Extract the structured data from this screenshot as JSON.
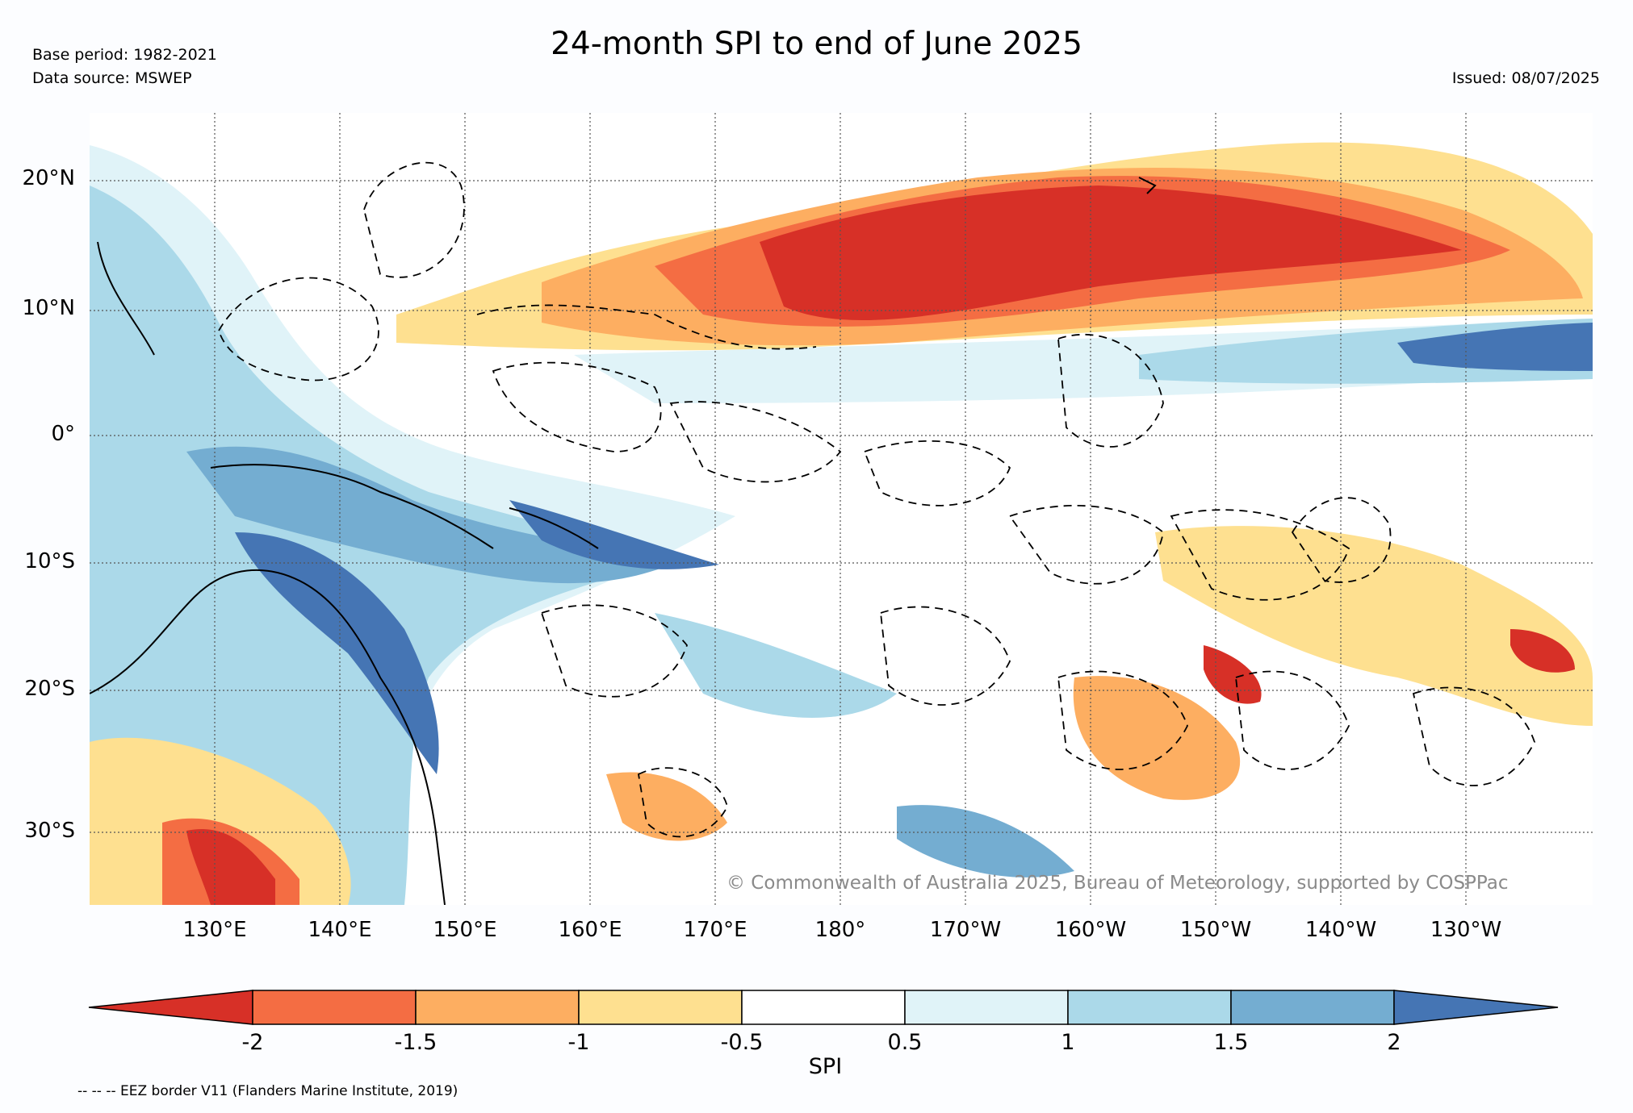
{
  "title": "24-month SPI to end of June 2025",
  "base_period": "Base period: 1982-2021",
  "data_source": "Data source: MSWEP",
  "issued": "Issued: 08/07/2025",
  "lat_labels": [
    "20°N",
    "10°N",
    "0°",
    "10°S",
    "20°S",
    "30°S"
  ],
  "lon_labels": [
    "130°E",
    "140°E",
    "150°E",
    "160°E",
    "170°E",
    "180°",
    "170°W",
    "160°W",
    "150°W",
    "140°W",
    "130°W"
  ],
  "copyright": "© Commonwealth of Australia 2025, Bureau of Meteorology, supported by COSPPac",
  "colorbar": {
    "title": "SPI",
    "tick_labels": [
      "-2",
      "-1.5",
      "-1",
      "-0.5",
      "0.5",
      "1",
      "1.5",
      "2"
    ],
    "colors": [
      "#d73027",
      "#f46d43",
      "#fdae61",
      "#fee090",
      "#ffffff",
      "#e0f3f8",
      "#abd9e9",
      "#74add1",
      "#4575b4"
    ]
  },
  "legend_note": "-- -- -- EEZ border V11 (Flanders Marine Institute, 2019)"
}
